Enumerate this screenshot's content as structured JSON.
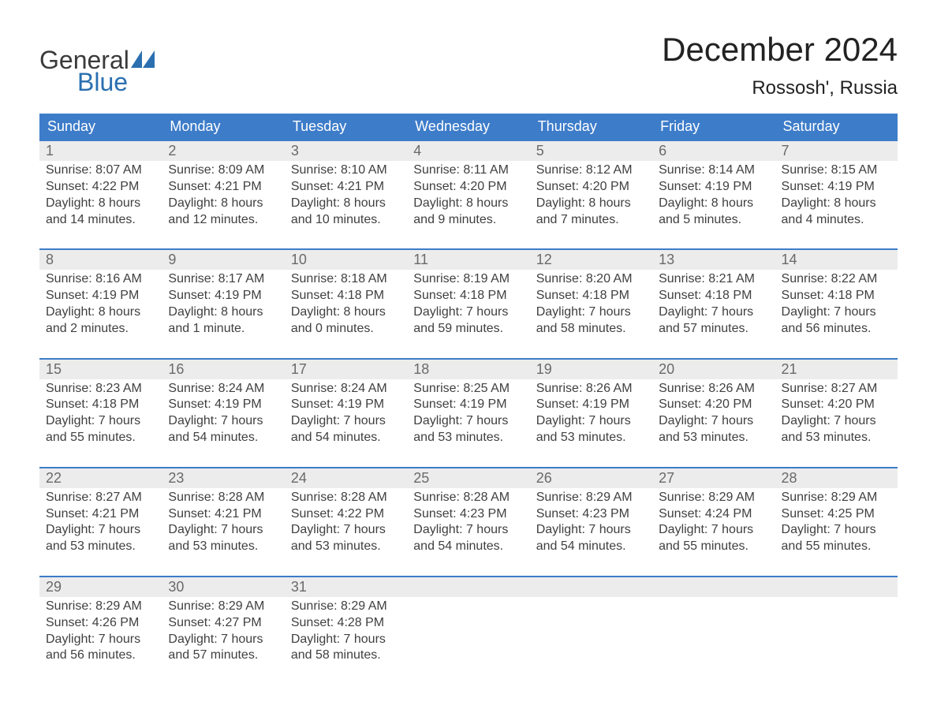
{
  "colors": {
    "header_bg": "#3d7cc9",
    "header_fg": "#ffffff",
    "daynum_bg": "#ececec",
    "daynum_fg": "#6a6a6a",
    "text": "#404040",
    "week_top_border": "#3d7cc9",
    "logo_gray": "#3a3a3a",
    "logo_blue": "#2a6fb0",
    "page_bg": "#ffffff"
  },
  "typography": {
    "month_title_pt": 42,
    "location_pt": 24,
    "dow_pt": 18,
    "daynum_pt": 18,
    "body_pt": 16,
    "logo_pt": 32
  },
  "logo": {
    "line1": "General",
    "line2": "Blue",
    "triangle_color": "#2a6fb0"
  },
  "title": "December 2024",
  "location": "Rossosh', Russia",
  "dow": [
    "Sunday",
    "Monday",
    "Tuesday",
    "Wednesday",
    "Thursday",
    "Friday",
    "Saturday"
  ],
  "weeks": [
    [
      {
        "n": "1",
        "l1": "Sunrise: 8:07 AM",
        "l2": "Sunset: 4:22 PM",
        "l3": "Daylight: 8 hours",
        "l4": "and 14 minutes."
      },
      {
        "n": "2",
        "l1": "Sunrise: 8:09 AM",
        "l2": "Sunset: 4:21 PM",
        "l3": "Daylight: 8 hours",
        "l4": "and 12 minutes."
      },
      {
        "n": "3",
        "l1": "Sunrise: 8:10 AM",
        "l2": "Sunset: 4:21 PM",
        "l3": "Daylight: 8 hours",
        "l4": "and 10 minutes."
      },
      {
        "n": "4",
        "l1": "Sunrise: 8:11 AM",
        "l2": "Sunset: 4:20 PM",
        "l3": "Daylight: 8 hours",
        "l4": "and 9 minutes."
      },
      {
        "n": "5",
        "l1": "Sunrise: 8:12 AM",
        "l2": "Sunset: 4:20 PM",
        "l3": "Daylight: 8 hours",
        "l4": "and 7 minutes."
      },
      {
        "n": "6",
        "l1": "Sunrise: 8:14 AM",
        "l2": "Sunset: 4:19 PM",
        "l3": "Daylight: 8 hours",
        "l4": "and 5 minutes."
      },
      {
        "n": "7",
        "l1": "Sunrise: 8:15 AM",
        "l2": "Sunset: 4:19 PM",
        "l3": "Daylight: 8 hours",
        "l4": "and 4 minutes."
      }
    ],
    [
      {
        "n": "8",
        "l1": "Sunrise: 8:16 AM",
        "l2": "Sunset: 4:19 PM",
        "l3": "Daylight: 8 hours",
        "l4": "and 2 minutes."
      },
      {
        "n": "9",
        "l1": "Sunrise: 8:17 AM",
        "l2": "Sunset: 4:19 PM",
        "l3": "Daylight: 8 hours",
        "l4": "and 1 minute."
      },
      {
        "n": "10",
        "l1": "Sunrise: 8:18 AM",
        "l2": "Sunset: 4:18 PM",
        "l3": "Daylight: 8 hours",
        "l4": "and 0 minutes."
      },
      {
        "n": "11",
        "l1": "Sunrise: 8:19 AM",
        "l2": "Sunset: 4:18 PM",
        "l3": "Daylight: 7 hours",
        "l4": "and 59 minutes."
      },
      {
        "n": "12",
        "l1": "Sunrise: 8:20 AM",
        "l2": "Sunset: 4:18 PM",
        "l3": "Daylight: 7 hours",
        "l4": "and 58 minutes."
      },
      {
        "n": "13",
        "l1": "Sunrise: 8:21 AM",
        "l2": "Sunset: 4:18 PM",
        "l3": "Daylight: 7 hours",
        "l4": "and 57 minutes."
      },
      {
        "n": "14",
        "l1": "Sunrise: 8:22 AM",
        "l2": "Sunset: 4:18 PM",
        "l3": "Daylight: 7 hours",
        "l4": "and 56 minutes."
      }
    ],
    [
      {
        "n": "15",
        "l1": "Sunrise: 8:23 AM",
        "l2": "Sunset: 4:18 PM",
        "l3": "Daylight: 7 hours",
        "l4": "and 55 minutes."
      },
      {
        "n": "16",
        "l1": "Sunrise: 8:24 AM",
        "l2": "Sunset: 4:19 PM",
        "l3": "Daylight: 7 hours",
        "l4": "and 54 minutes."
      },
      {
        "n": "17",
        "l1": "Sunrise: 8:24 AM",
        "l2": "Sunset: 4:19 PM",
        "l3": "Daylight: 7 hours",
        "l4": "and 54 minutes."
      },
      {
        "n": "18",
        "l1": "Sunrise: 8:25 AM",
        "l2": "Sunset: 4:19 PM",
        "l3": "Daylight: 7 hours",
        "l4": "and 53 minutes."
      },
      {
        "n": "19",
        "l1": "Sunrise: 8:26 AM",
        "l2": "Sunset: 4:19 PM",
        "l3": "Daylight: 7 hours",
        "l4": "and 53 minutes."
      },
      {
        "n": "20",
        "l1": "Sunrise: 8:26 AM",
        "l2": "Sunset: 4:20 PM",
        "l3": "Daylight: 7 hours",
        "l4": "and 53 minutes."
      },
      {
        "n": "21",
        "l1": "Sunrise: 8:27 AM",
        "l2": "Sunset: 4:20 PM",
        "l3": "Daylight: 7 hours",
        "l4": "and 53 minutes."
      }
    ],
    [
      {
        "n": "22",
        "l1": "Sunrise: 8:27 AM",
        "l2": "Sunset: 4:21 PM",
        "l3": "Daylight: 7 hours",
        "l4": "and 53 minutes."
      },
      {
        "n": "23",
        "l1": "Sunrise: 8:28 AM",
        "l2": "Sunset: 4:21 PM",
        "l3": "Daylight: 7 hours",
        "l4": "and 53 minutes."
      },
      {
        "n": "24",
        "l1": "Sunrise: 8:28 AM",
        "l2": "Sunset: 4:22 PM",
        "l3": "Daylight: 7 hours",
        "l4": "and 53 minutes."
      },
      {
        "n": "25",
        "l1": "Sunrise: 8:28 AM",
        "l2": "Sunset: 4:23 PM",
        "l3": "Daylight: 7 hours",
        "l4": "and 54 minutes."
      },
      {
        "n": "26",
        "l1": "Sunrise: 8:29 AM",
        "l2": "Sunset: 4:23 PM",
        "l3": "Daylight: 7 hours",
        "l4": "and 54 minutes."
      },
      {
        "n": "27",
        "l1": "Sunrise: 8:29 AM",
        "l2": "Sunset: 4:24 PM",
        "l3": "Daylight: 7 hours",
        "l4": "and 55 minutes."
      },
      {
        "n": "28",
        "l1": "Sunrise: 8:29 AM",
        "l2": "Sunset: 4:25 PM",
        "l3": "Daylight: 7 hours",
        "l4": "and 55 minutes."
      }
    ],
    [
      {
        "n": "29",
        "l1": "Sunrise: 8:29 AM",
        "l2": "Sunset: 4:26 PM",
        "l3": "Daylight: 7 hours",
        "l4": "and 56 minutes."
      },
      {
        "n": "30",
        "l1": "Sunrise: 8:29 AM",
        "l2": "Sunset: 4:27 PM",
        "l3": "Daylight: 7 hours",
        "l4": "and 57 minutes."
      },
      {
        "n": "31",
        "l1": "Sunrise: 8:29 AM",
        "l2": "Sunset: 4:28 PM",
        "l3": "Daylight: 7 hours",
        "l4": "and 58 minutes."
      },
      {
        "n": "",
        "l1": "",
        "l2": "",
        "l3": "",
        "l4": ""
      },
      {
        "n": "",
        "l1": "",
        "l2": "",
        "l3": "",
        "l4": ""
      },
      {
        "n": "",
        "l1": "",
        "l2": "",
        "l3": "",
        "l4": ""
      },
      {
        "n": "",
        "l1": "",
        "l2": "",
        "l3": "",
        "l4": ""
      }
    ]
  ]
}
